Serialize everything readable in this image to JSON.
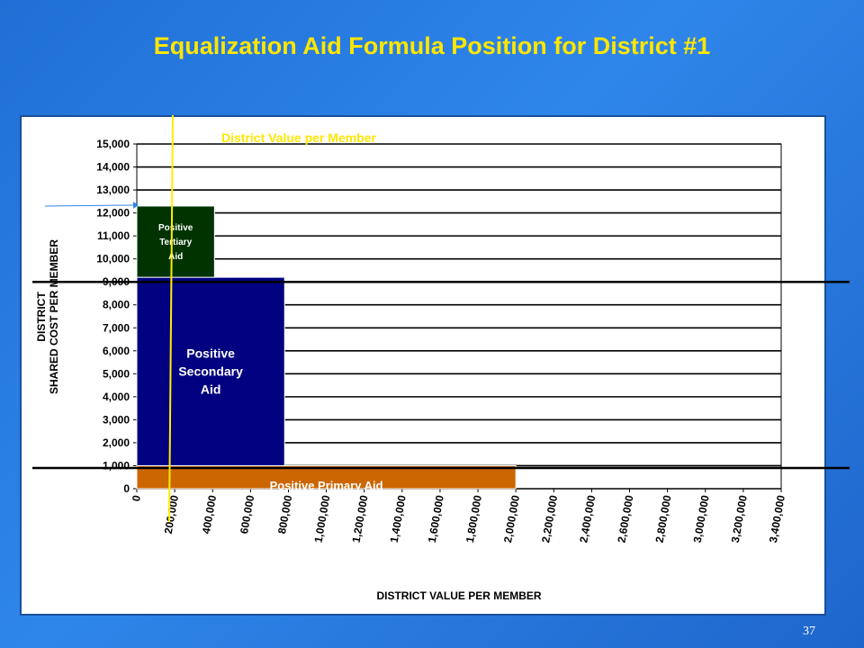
{
  "slide": {
    "title": "Equalization Aid Formula Position for District #1",
    "page_number": "37"
  },
  "chart_data": {
    "type": "bar",
    "title": "District Value per Member",
    "xlabel": "DISTRICT VALUE PER MEMBER",
    "ylabel_lines": [
      "DISTRICT",
      "SHARED COST PER MEMBER"
    ],
    "xlim": [
      0,
      3400000
    ],
    "ylim": [
      0,
      15000
    ],
    "x_ticks": [
      "0",
      "200,000",
      "400,000",
      "600,000",
      "800,000",
      "1,000,000",
      "1,200,000",
      "1,400,000",
      "1,600,000",
      "1,800,000",
      "2,000,000",
      "2,200,000",
      "2,400,000",
      "2,600,000",
      "2,800,000",
      "3,000,000",
      "3,200,000",
      "3,400,000"
    ],
    "y_ticks": [
      "0",
      "1,000",
      "2,000",
      "3,000",
      "4,000",
      "5,000",
      "6,000",
      "7,000",
      "8,000",
      "9,000",
      "10,000",
      "11,000",
      "12,000",
      "13,000",
      "14,000",
      "15,000"
    ],
    "grid": true,
    "aid_areas": [
      {
        "name": "Positive Primary Aid",
        "x_start": 0,
        "x_end": 2000000,
        "y_start": 0,
        "y_end": 1000,
        "color": "#cc6600",
        "label_color": "#ffffff"
      },
      {
        "name": "Positive Secondary Aid",
        "x_start": 0,
        "x_end": 780000,
        "y_start": 1000,
        "y_end": 9200,
        "color": "#000080",
        "label_color": "#ffffff"
      },
      {
        "name": "Positive Tertiary Aid",
        "x_start": 0,
        "x_end": 410000,
        "y_start": 9200,
        "y_end": 12300,
        "color": "#003300",
        "label_color": "#ffffff"
      }
    ],
    "district_value_line": {
      "x": 190000,
      "color": "#ffee00"
    },
    "threshold_lines": [
      {
        "y": 9000,
        "color": "#000000"
      },
      {
        "y": 900,
        "color": "#000000"
      }
    ],
    "annotation_color": "#ffe600",
    "arrow_color": "#2f86ea"
  }
}
